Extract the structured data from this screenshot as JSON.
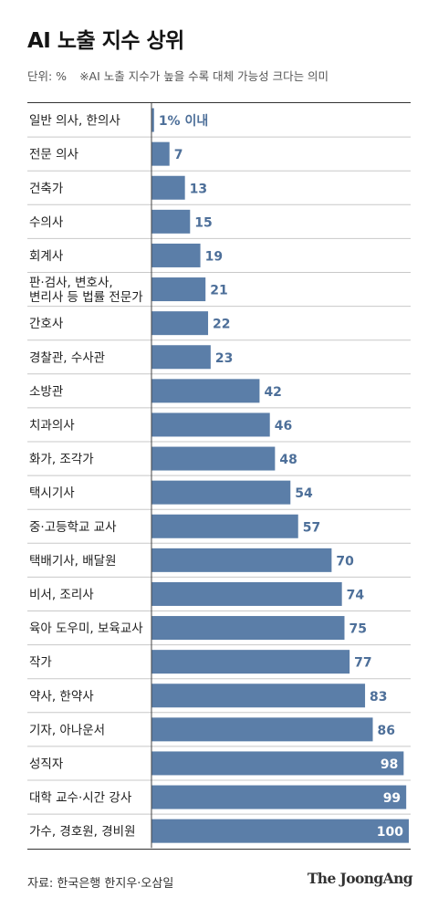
{
  "header": {
    "title": "AI 노출 지수 상위",
    "unit": "단위: %",
    "note": "※AI 노출 지수가 높을 수록 대체 가능성 크다는 의미"
  },
  "footer": {
    "source": "자료: 한국은행 한지우·오삼일",
    "logo": "The JoongAng"
  },
  "colors": {
    "bar": "#5b7ea8",
    "value_label": "#4d6f99",
    "value_label_inside": "#ffffff",
    "row_separator": "#c8c8c8",
    "axis": "#444444"
  },
  "chart_data": {
    "type": "bar",
    "orientation": "horizontal",
    "title": "AI 노출 지수 상위",
    "unit": "%",
    "xlim": [
      0,
      100
    ],
    "grid": false,
    "categories": [
      [
        "일반 의사, 한의사"
      ],
      [
        "전문 의사"
      ],
      [
        "건축가"
      ],
      [
        "수의사"
      ],
      [
        "회계사"
      ],
      [
        "판·검사, 변호사,",
        "변리사 등 법률 전문가"
      ],
      [
        "간호사"
      ],
      [
        "경찰관, 수사관"
      ],
      [
        "소방관"
      ],
      [
        "치과의사"
      ],
      [
        "화가, 조각가"
      ],
      [
        "택시기사"
      ],
      [
        "중·고등학교 교사"
      ],
      [
        "택배기사, 배달원"
      ],
      [
        "비서, 조리사"
      ],
      [
        "육아 도우미, 보육교사"
      ],
      [
        "작가"
      ],
      [
        "약사, 한약사"
      ],
      [
        "기자, 아나운서"
      ],
      [
        "성직자"
      ],
      [
        "대학 교수·시간 강사"
      ],
      [
        "가수, 경호원, 경비원"
      ]
    ],
    "values": [
      1,
      7,
      13,
      15,
      19,
      21,
      22,
      23,
      42,
      46,
      48,
      54,
      57,
      70,
      74,
      75,
      77,
      83,
      86,
      98,
      99,
      100
    ],
    "value_labels": [
      "1% 이내",
      "7",
      "13",
      "15",
      "19",
      "21",
      "22",
      "23",
      "42",
      "46",
      "48",
      "54",
      "57",
      "70",
      "74",
      "75",
      "77",
      "83",
      "86",
      "98",
      "99",
      "100"
    ]
  }
}
